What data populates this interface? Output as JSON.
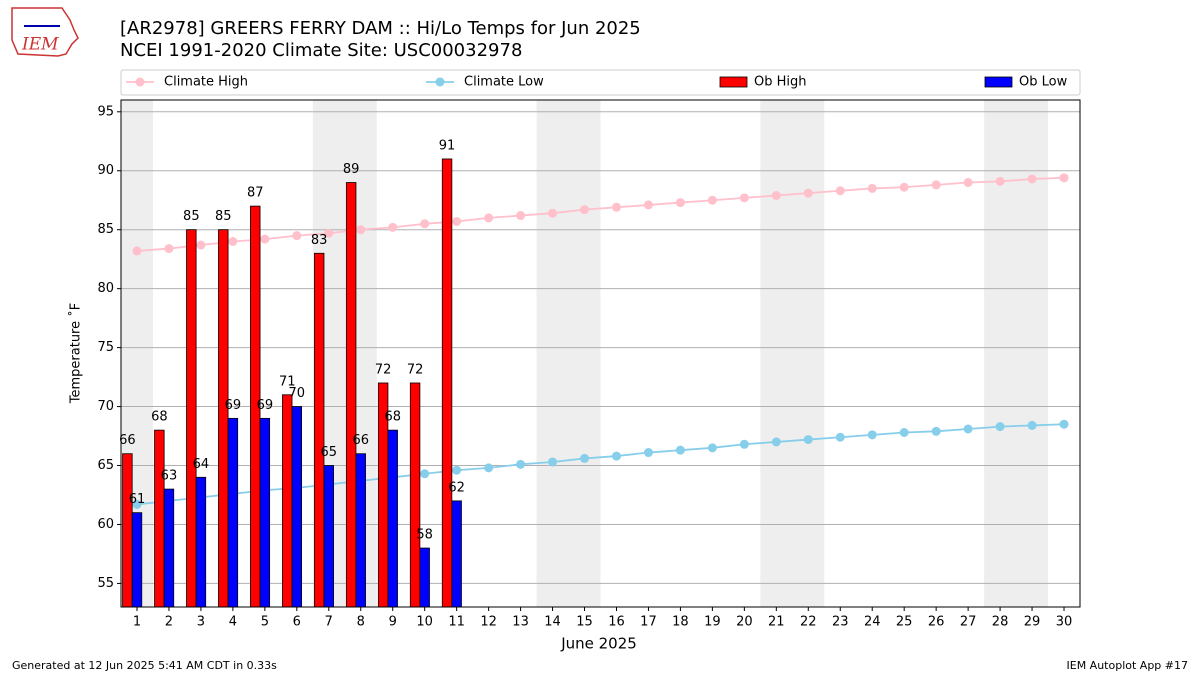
{
  "logo_text": "IEM",
  "footer_left": "Generated at 12 Jun 2025 5:41 AM CDT in 0.33s",
  "footer_right": "IEM Autoplot App #17",
  "chart_data": {
    "type": "bar",
    "title": "[AR2978] GREERS FERRY DAM :: Hi/Lo Temps for Jun 2025",
    "subtitle": "NCEI 1991-2020 Climate Site: USC00032978",
    "x_label": "June 2025",
    "y_label": "Temperature ˚F",
    "x": [
      1,
      2,
      3,
      4,
      5,
      6,
      7,
      8,
      9,
      10,
      11,
      12,
      13,
      14,
      15,
      16,
      17,
      18,
      19,
      20,
      21,
      22,
      23,
      24,
      25,
      26,
      27,
      28,
      29,
      30
    ],
    "xlim": [
      0.5,
      30.5
    ],
    "xticks": [
      1,
      2,
      3,
      4,
      5,
      6,
      7,
      8,
      9,
      10,
      11,
      12,
      13,
      14,
      15,
      16,
      17,
      18,
      19,
      20,
      21,
      22,
      23,
      24,
      25,
      26,
      27,
      28,
      29,
      30
    ],
    "ylim": [
      53,
      96
    ],
    "yticks": [
      55,
      60,
      65,
      70,
      75,
      80,
      85,
      90,
      95
    ],
    "grid": true,
    "shaded_x_ranges": [
      [
        0.5,
        1.5
      ],
      [
        6.5,
        8.5
      ],
      [
        13.5,
        15.5
      ],
      [
        20.5,
        22.5
      ],
      [
        27.5,
        29.5
      ]
    ],
    "shade_color": "#eeeeee",
    "series": [
      {
        "name": "Climate High",
        "type": "line",
        "color": "#ffc0cb",
        "values": [
          83.2,
          83.4,
          83.7,
          84.0,
          84.2,
          84.5,
          84.7,
          85.0,
          85.2,
          85.5,
          85.7,
          86.0,
          86.2,
          86.4,
          86.7,
          86.9,
          87.1,
          87.3,
          87.5,
          87.7,
          87.9,
          88.1,
          88.3,
          88.5,
          88.6,
          88.8,
          89.0,
          89.1,
          89.3,
          89.4
        ]
      },
      {
        "name": "Climate Low",
        "type": "line",
        "color": "#87ceeb",
        "values": [
          61.7,
          62.0,
          62.3,
          62.6,
          62.9,
          63.1,
          63.4,
          63.7,
          64.0,
          64.3,
          64.6,
          64.8,
          65.1,
          65.3,
          65.6,
          65.8,
          66.1,
          66.3,
          66.5,
          66.8,
          67.0,
          67.2,
          67.4,
          67.6,
          67.8,
          67.9,
          68.1,
          68.3,
          68.4,
          68.5
        ]
      },
      {
        "name": "Ob High",
        "type": "bar",
        "color": "#ff0000",
        "values": [
          66,
          68,
          85,
          85,
          87,
          71,
          83,
          89,
          72,
          72,
          91,
          null,
          null,
          null,
          null,
          null,
          null,
          null,
          null,
          null,
          null,
          null,
          null,
          null,
          null,
          null,
          null,
          null,
          null,
          null
        ]
      },
      {
        "name": "Ob Low",
        "type": "bar",
        "color": "#0000ff",
        "values": [
          61,
          63,
          64,
          69,
          69,
          70,
          65,
          66,
          68,
          58,
          62,
          null,
          null,
          null,
          null,
          null,
          null,
          null,
          null,
          null,
          null,
          null,
          null,
          null,
          null,
          null,
          null,
          null,
          null,
          null
        ]
      }
    ]
  }
}
